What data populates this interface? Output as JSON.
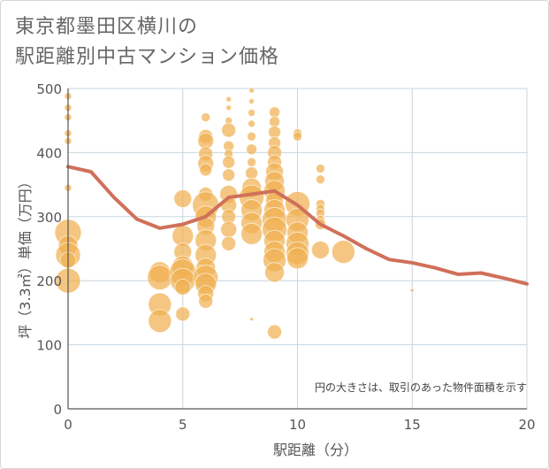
{
  "title": {
    "line1": "東京都墨田区横川の",
    "line2": "駅距離別中古マンション価格"
  },
  "colors": {
    "bubble": "#F0B050",
    "line": "#D0705A",
    "grid": "#c8d6e0",
    "axis": "#555555"
  },
  "chart_data": {
    "type": "scatter",
    "xlabel": "駅距離（分）",
    "ylabel": "坪（3.3㎡）単価（万円）",
    "xlim": [
      0,
      20
    ],
    "ylim": [
      0,
      500
    ],
    "x_ticks": [
      "0",
      "5",
      "10",
      "15",
      "20"
    ],
    "y_ticks": [
      "0",
      "100",
      "200",
      "300",
      "400",
      "500"
    ],
    "note": "円の大きさは、取引のあった物件面積を示す",
    "trend_line": {
      "x": [
        0,
        1,
        2,
        3,
        4,
        5,
        6,
        7,
        8,
        9,
        10,
        11,
        12,
        13,
        14,
        15,
        16,
        17,
        18,
        19,
        20
      ],
      "y": [
        378,
        370,
        330,
        296,
        282,
        288,
        300,
        330,
        335,
        340,
        318,
        288,
        270,
        250,
        233,
        228,
        220,
        210,
        212,
        204,
        195
      ]
    },
    "points": [
      {
        "x": 0,
        "y": 488,
        "s": 4
      },
      {
        "x": 0,
        "y": 470,
        "s": 4
      },
      {
        "x": 0,
        "y": 455,
        "s": 4
      },
      {
        "x": 0,
        "y": 430,
        "s": 4
      },
      {
        "x": 0,
        "y": 418,
        "s": 4
      },
      {
        "x": 0,
        "y": 345,
        "s": 4
      },
      {
        "x": 0,
        "y": 275,
        "s": 15
      },
      {
        "x": 0,
        "y": 255,
        "s": 11
      },
      {
        "x": 0,
        "y": 240,
        "s": 14
      },
      {
        "x": 0,
        "y": 232,
        "s": 9
      },
      {
        "x": 0,
        "y": 200,
        "s": 14
      },
      {
        "x": 4,
        "y": 213,
        "s": 12
      },
      {
        "x": 4,
        "y": 205,
        "s": 14
      },
      {
        "x": 4,
        "y": 163,
        "s": 13
      },
      {
        "x": 4,
        "y": 137,
        "s": 13
      },
      {
        "x": 5,
        "y": 328,
        "s": 10
      },
      {
        "x": 5,
        "y": 270,
        "s": 12
      },
      {
        "x": 5,
        "y": 245,
        "s": 10
      },
      {
        "x": 5,
        "y": 222,
        "s": 12
      },
      {
        "x": 5,
        "y": 213,
        "s": 15
      },
      {
        "x": 5,
        "y": 200,
        "s": 14
      },
      {
        "x": 5,
        "y": 190,
        "s": 9
      },
      {
        "x": 5,
        "y": 148,
        "s": 8
      },
      {
        "x": 6,
        "y": 455,
        "s": 5
      },
      {
        "x": 6,
        "y": 425,
        "s": 8
      },
      {
        "x": 6,
        "y": 418,
        "s": 9
      },
      {
        "x": 6,
        "y": 398,
        "s": 8
      },
      {
        "x": 6,
        "y": 383,
        "s": 9
      },
      {
        "x": 6,
        "y": 373,
        "s": 7
      },
      {
        "x": 6,
        "y": 335,
        "s": 8
      },
      {
        "x": 6,
        "y": 318,
        "s": 15
      },
      {
        "x": 6,
        "y": 300,
        "s": 12
      },
      {
        "x": 6,
        "y": 285,
        "s": 10
      },
      {
        "x": 6,
        "y": 263,
        "s": 12
      },
      {
        "x": 6,
        "y": 240,
        "s": 12
      },
      {
        "x": 6,
        "y": 220,
        "s": 11
      },
      {
        "x": 6,
        "y": 205,
        "s": 14
      },
      {
        "x": 6,
        "y": 195,
        "s": 12
      },
      {
        "x": 6,
        "y": 180,
        "s": 9
      },
      {
        "x": 6,
        "y": 168,
        "s": 8
      },
      {
        "x": 7,
        "y": 483,
        "s": 3
      },
      {
        "x": 7,
        "y": 470,
        "s": 3
      },
      {
        "x": 7,
        "y": 450,
        "s": 4
      },
      {
        "x": 7,
        "y": 435,
        "s": 8
      },
      {
        "x": 7,
        "y": 410,
        "s": 6
      },
      {
        "x": 7,
        "y": 398,
        "s": 5
      },
      {
        "x": 7,
        "y": 385,
        "s": 7
      },
      {
        "x": 7,
        "y": 365,
        "s": 7
      },
      {
        "x": 7,
        "y": 335,
        "s": 10
      },
      {
        "x": 7,
        "y": 318,
        "s": 9
      },
      {
        "x": 7,
        "y": 300,
        "s": 8
      },
      {
        "x": 7,
        "y": 280,
        "s": 9
      },
      {
        "x": 7,
        "y": 258,
        "s": 8
      },
      {
        "x": 8,
        "y": 497,
        "s": 3
      },
      {
        "x": 8,
        "y": 480,
        "s": 3
      },
      {
        "x": 8,
        "y": 462,
        "s": 4
      },
      {
        "x": 8,
        "y": 445,
        "s": 4
      },
      {
        "x": 8,
        "y": 425,
        "s": 5
      },
      {
        "x": 8,
        "y": 405,
        "s": 6
      },
      {
        "x": 8,
        "y": 385,
        "s": 5
      },
      {
        "x": 8,
        "y": 368,
        "s": 7
      },
      {
        "x": 8,
        "y": 345,
        "s": 11
      },
      {
        "x": 8,
        "y": 330,
        "s": 14
      },
      {
        "x": 8,
        "y": 310,
        "s": 12
      },
      {
        "x": 8,
        "y": 290,
        "s": 12
      },
      {
        "x": 8,
        "y": 273,
        "s": 12
      },
      {
        "x": 8,
        "y": 140,
        "s": 2
      },
      {
        "x": 9,
        "y": 463,
        "s": 6
      },
      {
        "x": 9,
        "y": 448,
        "s": 6
      },
      {
        "x": 9,
        "y": 432,
        "s": 7
      },
      {
        "x": 9,
        "y": 415,
        "s": 7
      },
      {
        "x": 9,
        "y": 400,
        "s": 8
      },
      {
        "x": 9,
        "y": 385,
        "s": 8
      },
      {
        "x": 9,
        "y": 370,
        "s": 10
      },
      {
        "x": 9,
        "y": 355,
        "s": 11
      },
      {
        "x": 9,
        "y": 340,
        "s": 12
      },
      {
        "x": 9,
        "y": 325,
        "s": 10
      },
      {
        "x": 9,
        "y": 310,
        "s": 12
      },
      {
        "x": 9,
        "y": 295,
        "s": 14
      },
      {
        "x": 9,
        "y": 280,
        "s": 14
      },
      {
        "x": 9,
        "y": 262,
        "s": 12
      },
      {
        "x": 9,
        "y": 245,
        "s": 12
      },
      {
        "x": 9,
        "y": 232,
        "s": 13
      },
      {
        "x": 9,
        "y": 213,
        "s": 11
      },
      {
        "x": 9,
        "y": 120,
        "s": 8
      },
      {
        "x": 10,
        "y": 430,
        "s": 5
      },
      {
        "x": 10,
        "y": 425,
        "s": 5
      },
      {
        "x": 10,
        "y": 320,
        "s": 14
      },
      {
        "x": 10,
        "y": 295,
        "s": 13
      },
      {
        "x": 10,
        "y": 275,
        "s": 12
      },
      {
        "x": 10,
        "y": 258,
        "s": 13
      },
      {
        "x": 10,
        "y": 243,
        "s": 13
      },
      {
        "x": 10,
        "y": 235,
        "s": 12
      },
      {
        "x": 11,
        "y": 375,
        "s": 5
      },
      {
        "x": 11,
        "y": 358,
        "s": 5
      },
      {
        "x": 11,
        "y": 320,
        "s": 5
      },
      {
        "x": 11,
        "y": 312,
        "s": 5
      },
      {
        "x": 11,
        "y": 305,
        "s": 5
      },
      {
        "x": 11,
        "y": 295,
        "s": 5
      },
      {
        "x": 11,
        "y": 288,
        "s": 6
      },
      {
        "x": 11,
        "y": 248,
        "s": 10
      },
      {
        "x": 12,
        "y": 245,
        "s": 13
      },
      {
        "x": 15,
        "y": 185,
        "s": 2
      }
    ]
  }
}
